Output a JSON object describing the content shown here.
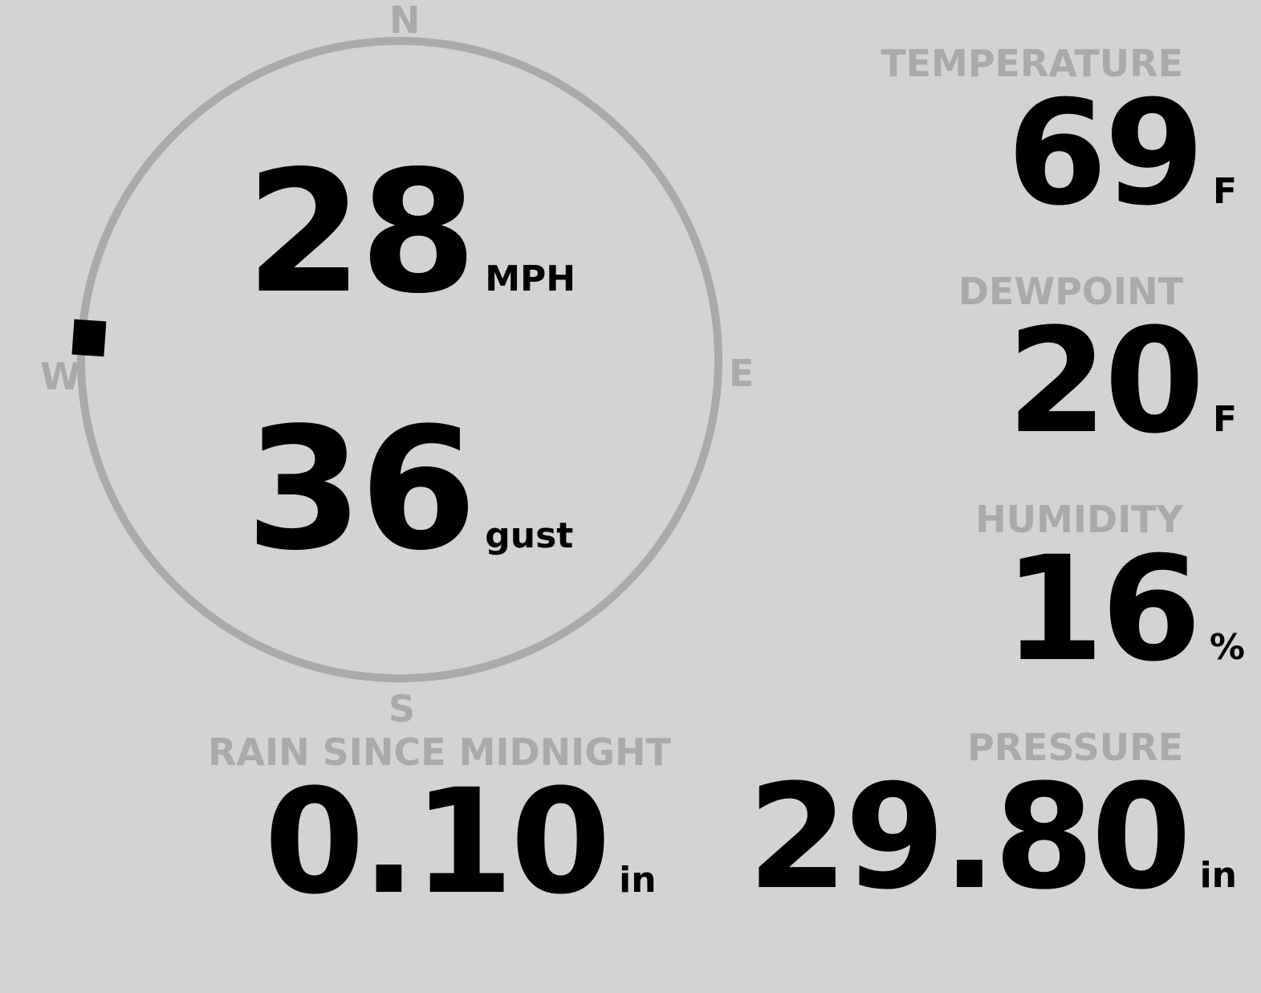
{
  "wind": {
    "speed": "28",
    "speed_unit": "MPH",
    "gust": "36",
    "gust_unit": "gust",
    "direction_degrees": 274,
    "compass": {
      "n": "N",
      "e": "E",
      "s": "S",
      "w": "W"
    }
  },
  "temperature": {
    "label": "TEMPERATURE",
    "value": "69",
    "unit": "F"
  },
  "dewpoint": {
    "label": "DEWPOINT",
    "value": "20",
    "unit": "F"
  },
  "humidity": {
    "label": "HUMIDITY",
    "value": "16",
    "unit": "%"
  },
  "rain": {
    "label": "RAIN SINCE MIDNIGHT",
    "value": "0.10",
    "unit": "in"
  },
  "pressure": {
    "label": "PRESSURE",
    "value": "29.80",
    "unit": "in"
  },
  "colors": {
    "background": "#d3d3d3",
    "muted": "#aaaaaa",
    "value": "#000000"
  }
}
